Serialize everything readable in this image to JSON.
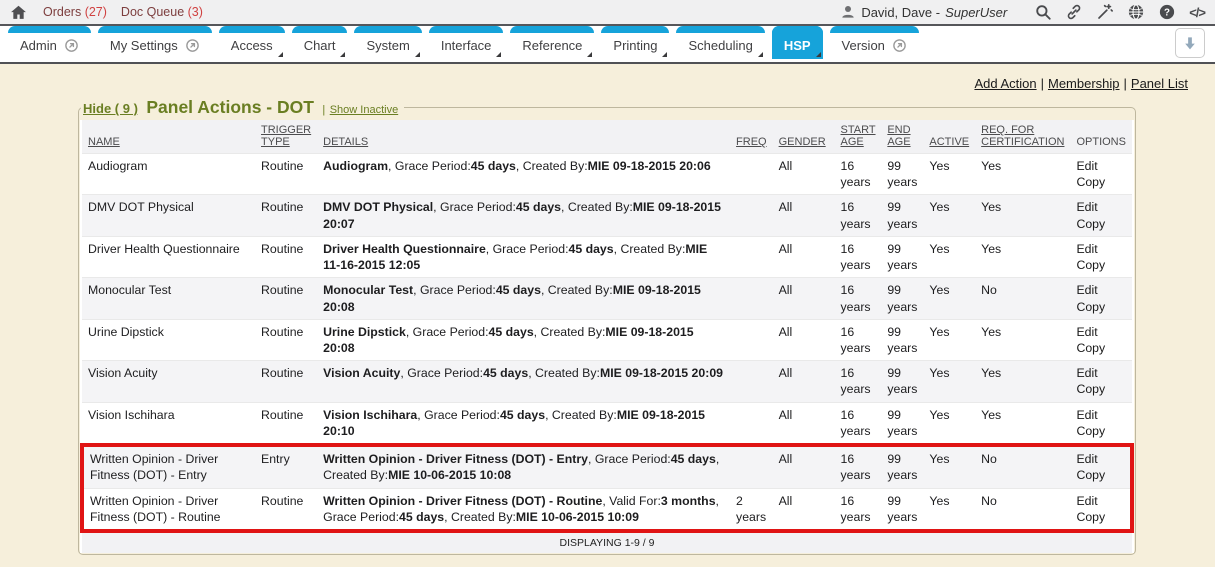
{
  "topbar": {
    "orders": {
      "label": "Orders",
      "count": "(27)"
    },
    "doc_queue": {
      "label": "Doc Queue",
      "count": "(3)"
    },
    "user": {
      "name": "David, Dave -",
      "role": "SuperUser"
    },
    "icons": {
      "help_glyph": "?",
      "code_glyph": "</>"
    }
  },
  "tabbar": {
    "tabs": [
      {
        "label": "Admin",
        "type": "external"
      },
      {
        "label": "My Settings",
        "type": "external"
      },
      {
        "label": "Access",
        "type": "menu"
      },
      {
        "label": "Chart",
        "type": "menu"
      },
      {
        "label": "System",
        "type": "menu"
      },
      {
        "label": "Interface",
        "type": "menu"
      },
      {
        "label": "Reference",
        "type": "menu"
      },
      {
        "label": "Printing",
        "type": "menu"
      },
      {
        "label": "Scheduling",
        "type": "menu"
      },
      {
        "label": "HSP",
        "type": "menu",
        "active": true
      },
      {
        "label": "Version",
        "type": "external"
      }
    ]
  },
  "actions": {
    "links": [
      "Add Action",
      "Membership",
      "Panel List"
    ],
    "separator": "|"
  },
  "panel": {
    "hide_label": "Hide ( 9 )",
    "title": "Panel Actions - DOT",
    "legend_separator": "|",
    "show_inactive_label": "Show Inactive"
  },
  "table": {
    "headers": [
      {
        "label": "NAME",
        "sortable": true
      },
      {
        "label": "TRIGGER TYPE",
        "sortable": true
      },
      {
        "label": "DETAILS",
        "sortable": true
      },
      {
        "label": "FREQ",
        "sortable": true
      },
      {
        "label": "GENDER",
        "sortable": true
      },
      {
        "label": "START AGE",
        "sortable": true
      },
      {
        "label": "END AGE",
        "sortable": true
      },
      {
        "label": "ACTIVE",
        "sortable": true
      },
      {
        "label": "REQ. FOR CERTIFICATION",
        "sortable": true
      },
      {
        "label": "OPTIONS",
        "sortable": false
      }
    ],
    "rows": [
      {
        "name": "Audiogram",
        "trigger": "Routine",
        "details": [
          [
            "Audiogram",
            1
          ],
          [
            ", Grace Period:",
            0
          ],
          [
            "45 days",
            1
          ],
          [
            ", Created By:",
            0
          ],
          [
            "MIE 09-18-2015 20:06",
            1
          ]
        ],
        "freq": "",
        "gender": "All",
        "start_age": "16 years",
        "end_age": "99 years",
        "active": "Yes",
        "req_for_cert": "Yes",
        "options": [
          "Edit",
          "Copy"
        ],
        "highlight": false
      },
      {
        "name": "DMV DOT Physical",
        "trigger": "Routine",
        "details": [
          [
            "DMV DOT Physical",
            1
          ],
          [
            ", Grace Period:",
            0
          ],
          [
            "45 days",
            1
          ],
          [
            ", Created By:",
            0
          ],
          [
            "MIE 09-18-2015 20:07",
            1
          ]
        ],
        "freq": "",
        "gender": "All",
        "start_age": "16 years",
        "end_age": "99 years",
        "active": "Yes",
        "req_for_cert": "Yes",
        "options": [
          "Edit",
          "Copy"
        ],
        "highlight": false
      },
      {
        "name": "Driver Health Questionnaire",
        "trigger": "Routine",
        "details": [
          [
            "Driver Health Questionnaire",
            1
          ],
          [
            ", Grace Period:",
            0
          ],
          [
            "45 days",
            1
          ],
          [
            ", Created By:",
            0
          ],
          [
            "MIE 11-16-2015 12:05",
            1
          ]
        ],
        "freq": "",
        "gender": "All",
        "start_age": "16 years",
        "end_age": "99 years",
        "active": "Yes",
        "req_for_cert": "Yes",
        "options": [
          "Edit",
          "Copy"
        ],
        "highlight": false
      },
      {
        "name": "Monocular Test",
        "trigger": "Routine",
        "details": [
          [
            "Monocular Test",
            1
          ],
          [
            ", Grace Period:",
            0
          ],
          [
            "45 days",
            1
          ],
          [
            ", Created By:",
            0
          ],
          [
            "MIE 09-18-2015 20:08",
            1
          ]
        ],
        "freq": "",
        "gender": "All",
        "start_age": "16 years",
        "end_age": "99 years",
        "active": "Yes",
        "req_for_cert": "No",
        "options": [
          "Edit",
          "Copy"
        ],
        "highlight": false
      },
      {
        "name": "Urine Dipstick",
        "trigger": "Routine",
        "details": [
          [
            "Urine Dipstick",
            1
          ],
          [
            ", Grace Period:",
            0
          ],
          [
            "45 days",
            1
          ],
          [
            ", Created By:",
            0
          ],
          [
            "MIE 09-18-2015 20:08",
            1
          ]
        ],
        "freq": "",
        "gender": "All",
        "start_age": "16 years",
        "end_age": "99 years",
        "active": "Yes",
        "req_for_cert": "Yes",
        "options": [
          "Edit",
          "Copy"
        ],
        "highlight": false
      },
      {
        "name": "Vision Acuity",
        "trigger": "Routine",
        "details": [
          [
            "Vision Acuity",
            1
          ],
          [
            ", Grace Period:",
            0
          ],
          [
            "45 days",
            1
          ],
          [
            ", Created By:",
            0
          ],
          [
            "MIE 09-18-2015 20:09",
            1
          ]
        ],
        "freq": "",
        "gender": "All",
        "start_age": "16 years",
        "end_age": "99 years",
        "active": "Yes",
        "req_for_cert": "Yes",
        "options": [
          "Edit",
          "Copy"
        ],
        "highlight": false
      },
      {
        "name": "Vision Ischihara",
        "trigger": "Routine",
        "details": [
          [
            "Vision Ischihara",
            1
          ],
          [
            ", Grace Period:",
            0
          ],
          [
            "45 days",
            1
          ],
          [
            ", Created By:",
            0
          ],
          [
            "MIE 09-18-2015 20:10",
            1
          ]
        ],
        "freq": "",
        "gender": "All",
        "start_age": "16 years",
        "end_age": "99 years",
        "active": "Yes",
        "req_for_cert": "Yes",
        "options": [
          "Edit",
          "Copy"
        ],
        "highlight": false
      },
      {
        "name": "Written Opinion - Driver Fitness (DOT) - Entry",
        "trigger": "Entry",
        "details": [
          [
            "Written Opinion - Driver Fitness (DOT) - Entry",
            1
          ],
          [
            ", Grace Period:",
            0
          ],
          [
            "45 days",
            1
          ],
          [
            ", Created By:",
            0
          ],
          [
            "MIE 10-06-2015 10:08",
            1
          ]
        ],
        "freq": "",
        "gender": "All",
        "start_age": "16 years",
        "end_age": "99 years",
        "active": "Yes",
        "req_for_cert": "No",
        "options": [
          "Edit",
          "Copy"
        ],
        "highlight": true
      },
      {
        "name": "Written Opinion - Driver Fitness (DOT) - Routine",
        "trigger": "Routine",
        "details": [
          [
            "Written Opinion - Driver Fitness (DOT) - Routine",
            1
          ],
          [
            ", Valid For:",
            0
          ],
          [
            "3 months",
            1
          ],
          [
            ", Grace Period:",
            0
          ],
          [
            "45 days",
            1
          ],
          [
            ", Created By:",
            0
          ],
          [
            "MIE 10-06-2015 10:09",
            1
          ]
        ],
        "freq": "2 years",
        "gender": "All",
        "start_age": "16 years",
        "end_age": "99 years",
        "active": "Yes",
        "req_for_cert": "No",
        "options": [
          "Edit",
          "Copy"
        ],
        "highlight": true
      }
    ],
    "footer": "DISPLAYING 1-9 / 9"
  },
  "colors": {
    "accent_blue": "#16a3da",
    "highlight_red": "#e01414",
    "title_olive": "#6a7e22",
    "page_cream": "#f6efdb",
    "topbar_link": "#7d3e3e",
    "count_red": "#d04141"
  }
}
